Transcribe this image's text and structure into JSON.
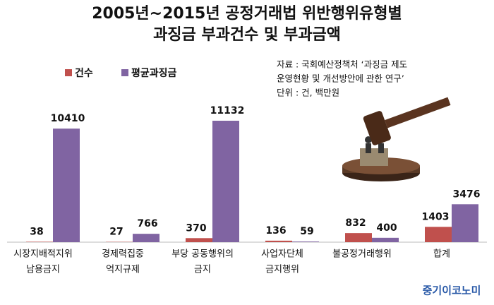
{
  "chart_data": {
    "type": "bar",
    "title": [
      "2005년~2015년 공정거래법 위반행위유형별",
      "과징금 부과건수 및 부과금액"
    ],
    "categories": [
      [
        "시장지배적지위",
        "남용금지"
      ],
      [
        "경제력집중",
        "억지규제"
      ],
      [
        "부당 공동행위의",
        "금지"
      ],
      [
        "사업자단체",
        "금지행위"
      ],
      [
        "불공정거래행위"
      ],
      [
        "합계"
      ]
    ],
    "series": [
      {
        "name": "건수",
        "color": "#c0504d",
        "values": [
          38,
          27,
          370,
          136,
          832,
          1403
        ]
      },
      {
        "name": "평균과징금",
        "color": "#8064a2",
        "values": [
          10410,
          766,
          11132,
          59,
          400,
          3476
        ]
      }
    ],
    "source": [
      "자료 : 국회예산정책처 ‘과징금 제도",
      "운영현황 및 개선방안에 관한 연구’",
      "단위 : 건, 백만원"
    ],
    "watermark": "중기이코노미"
  }
}
